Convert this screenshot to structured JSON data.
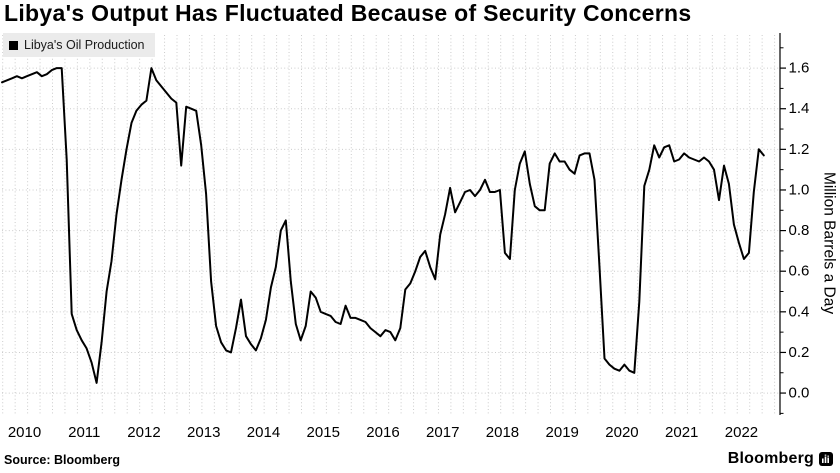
{
  "title": "Libya's Output Has Fluctuated Because of Security Concerns",
  "legend": {
    "label": "Libya's Oil Production",
    "swatch_color": "#000000"
  },
  "source": "Source: Bloomberg",
  "branding": {
    "wordmark": "Bloomberg",
    "logo_icon": "bloomberg-terminal-logo"
  },
  "colors": {
    "background": "#ffffff",
    "line": "#000000",
    "grid": "#cccccc",
    "axis": "#000000",
    "legend_bg": "#ebebeb",
    "text": "#000000"
  },
  "chart_data": {
    "type": "line",
    "title": "Libya's Output Has Fluctuated Because of Security Concerns",
    "ylabel": "Million Barrels a Day",
    "xlabel": "",
    "legend_position": "top-left",
    "grid": true,
    "frequency": "monthly",
    "x_start": "2010-01",
    "x_end": "2022-10",
    "ylim": [
      -0.108,
      1.763
    ],
    "y_axis": {
      "label": "Million Barrels a Day",
      "tick_values": [
        0.0,
        0.2,
        0.4,
        0.6,
        0.8,
        1.0,
        1.2,
        1.4,
        1.6
      ],
      "tick_labels": [
        "0.0",
        "0.2",
        "0.4",
        "0.6",
        "0.8",
        "1.0",
        "1.2",
        "1.4",
        "1.6"
      ],
      "minor_tick_values": [
        -0.1,
        0.1,
        0.3,
        0.5,
        0.7,
        0.9,
        1.1,
        1.3,
        1.5,
        1.7
      ]
    },
    "x_axis": {
      "tick_labels": [
        "2010",
        "2011",
        "2012",
        "2013",
        "2014",
        "2015",
        "2016",
        "2017",
        "2018",
        "2019",
        "2020",
        "2021",
        "2022"
      ]
    },
    "series": [
      {
        "name": "Libya's Oil Production",
        "color": "#000000",
        "unit": "million barrels a day",
        "values": [
          1.53,
          1.54,
          1.55,
          1.56,
          1.55,
          1.56,
          1.57,
          1.58,
          1.56,
          1.57,
          1.59,
          1.6,
          1.6,
          1.15,
          0.39,
          0.31,
          0.26,
          0.22,
          0.15,
          0.05,
          0.25,
          0.5,
          0.65,
          0.88,
          1.05,
          1.2,
          1.33,
          1.39,
          1.42,
          1.44,
          1.6,
          1.54,
          1.51,
          1.48,
          1.45,
          1.43,
          1.12,
          1.41,
          1.4,
          1.39,
          1.22,
          0.98,
          0.55,
          0.33,
          0.25,
          0.21,
          0.2,
          0.32,
          0.46,
          0.28,
          0.24,
          0.21,
          0.27,
          0.36,
          0.52,
          0.62,
          0.8,
          0.85,
          0.55,
          0.34,
          0.26,
          0.33,
          0.5,
          0.47,
          0.4,
          0.39,
          0.38,
          0.35,
          0.34,
          0.43,
          0.37,
          0.37,
          0.36,
          0.35,
          0.32,
          0.3,
          0.28,
          0.31,
          0.3,
          0.26,
          0.32,
          0.51,
          0.54,
          0.6,
          0.67,
          0.7,
          0.62,
          0.56,
          0.78,
          0.88,
          1.01,
          0.89,
          0.94,
          0.99,
          1.0,
          0.97,
          1.0,
          1.05,
          0.99,
          0.99,
          1.0,
          0.69,
          0.66,
          1.0,
          1.13,
          1.19,
          1.03,
          0.92,
          0.9,
          0.9,
          1.13,
          1.18,
          1.14,
          1.14,
          1.1,
          1.08,
          1.17,
          1.18,
          1.18,
          1.05,
          0.62,
          0.17,
          0.14,
          0.12,
          0.11,
          0.14,
          0.11,
          0.1,
          0.45,
          1.02,
          1.1,
          1.22,
          1.16,
          1.21,
          1.22,
          1.14,
          1.15,
          1.18,
          1.16,
          1.15,
          1.14,
          1.16,
          1.14,
          1.1,
          0.95,
          1.12,
          1.03,
          0.83,
          0.74,
          0.66,
          0.69,
          0.99,
          1.2,
          1.17
        ]
      }
    ]
  }
}
